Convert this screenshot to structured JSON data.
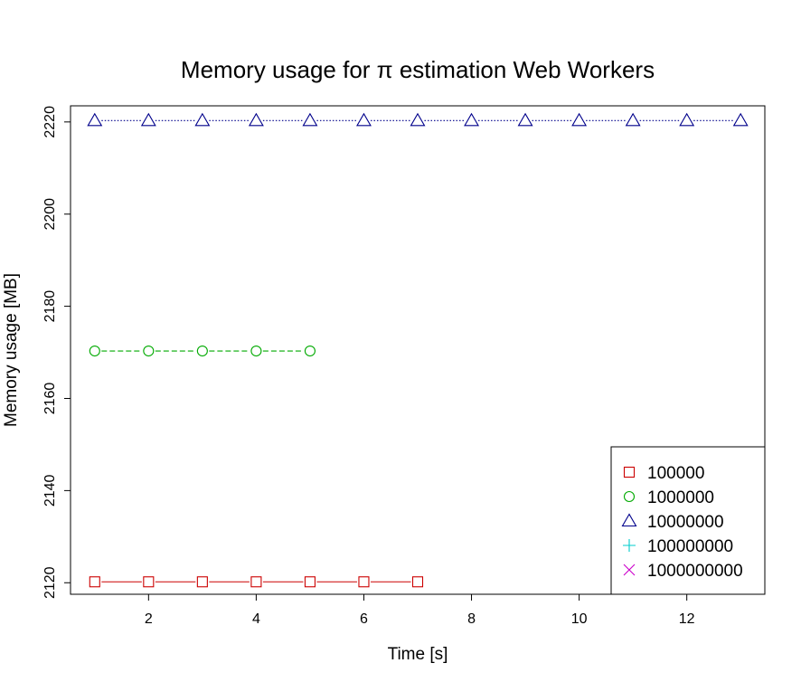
{
  "chart_data": {
    "type": "line",
    "title": "Memory usage for π estimation Web Workers",
    "xlabel": "Time [s]",
    "ylabel": "Memory usage [MB]",
    "xlim": [
      0.55,
      13.45
    ],
    "ylim": [
      2117.5,
      2223.5
    ],
    "xticks": [
      2,
      4,
      6,
      8,
      10,
      12
    ],
    "yticks": [
      2120,
      2140,
      2160,
      2180,
      2200,
      2220
    ],
    "grid": false,
    "legend_position": "bottom-right",
    "series": [
      {
        "name": "100000",
        "color": "#cc0000",
        "marker": "square",
        "line": "solid",
        "x": [
          1,
          2,
          3,
          4,
          5,
          6,
          7
        ],
        "y": [
          2120.2,
          2120.2,
          2120.2,
          2120.2,
          2120.2,
          2120.2,
          2120.2
        ]
      },
      {
        "name": "1000000",
        "color": "#00aa00",
        "marker": "circle",
        "line": "dashed",
        "x": [
          1,
          2,
          3,
          4,
          5
        ],
        "y": [
          2170.3,
          2170.3,
          2170.3,
          2170.3,
          2170.3
        ]
      },
      {
        "name": "10000000",
        "color": "#00008b",
        "marker": "triangle",
        "line": "dotted",
        "x": [
          1,
          2,
          3,
          4,
          5,
          6,
          7,
          8,
          9,
          10,
          11,
          12,
          13
        ],
        "y": [
          2220.3,
          2220.3,
          2220.3,
          2220.3,
          2220.3,
          2220.3,
          2220.3,
          2220.3,
          2220.3,
          2220.3,
          2220.3,
          2220.3,
          2220.3
        ]
      },
      {
        "name": "100000000",
        "color": "#00cccc",
        "marker": "plus",
        "line": "none",
        "x": [],
        "y": []
      },
      {
        "name": "1000000000",
        "color": "#cc00cc",
        "marker": "cross",
        "line": "none",
        "x": [],
        "y": []
      }
    ]
  }
}
